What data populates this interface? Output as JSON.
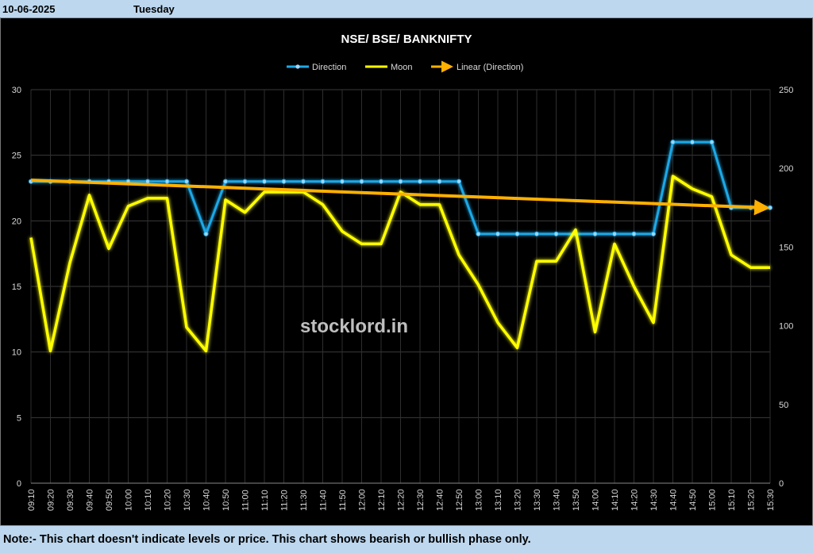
{
  "header": {
    "date": "10-06-2025",
    "day": "Tuesday"
  },
  "footer": {
    "note": "Note:- This chart doesn't indicate levels or price. This chart shows bearish or bullish phase only."
  },
  "watermark": "stocklord.in",
  "chart_data": {
    "type": "line",
    "title": "NSE/ BSE/ BANKNIFTY",
    "legend_placement": "top-center",
    "grid": true,
    "categories": [
      "09:10",
      "09:20",
      "09:30",
      "09:40",
      "09:50",
      "10:00",
      "10:10",
      "10:20",
      "10:30",
      "10:40",
      "10:50",
      "11:00",
      "11:10",
      "11:20",
      "11:30",
      "11:40",
      "11:50",
      "12:00",
      "12:10",
      "12:20",
      "12:30",
      "12:40",
      "12:50",
      "13:00",
      "13:10",
      "13:20",
      "13:30",
      "13:40",
      "13:50",
      "14:00",
      "14:10",
      "14:20",
      "14:30",
      "14:40",
      "14:50",
      "15:00",
      "15:10",
      "15:20",
      "15:30"
    ],
    "y_left": {
      "min": 0,
      "max": 30,
      "ticks": [
        0,
        5,
        10,
        15,
        20,
        25,
        30
      ]
    },
    "y_right": {
      "min": 0,
      "max": 250,
      "ticks": [
        0,
        50,
        100,
        150,
        200,
        250
      ]
    },
    "series": [
      {
        "name": "Direction",
        "axis": "left",
        "color": "#1fa8e6",
        "values": [
          23,
          23,
          23,
          23,
          23,
          23,
          23,
          23,
          23,
          19,
          23,
          23,
          23,
          23,
          23,
          23,
          23,
          23,
          23,
          23,
          23,
          23,
          23,
          19,
          19,
          19,
          19,
          19,
          19,
          19,
          19,
          19,
          19,
          26,
          26,
          26,
          21,
          21,
          21
        ]
      },
      {
        "name": "Moon",
        "axis": "right",
        "color": "#ffff00",
        "values": [
          156,
          84,
          140,
          183,
          149,
          176,
          181,
          181,
          99,
          84,
          180,
          172,
          185,
          185,
          185,
          177,
          160,
          152,
          152,
          185,
          177,
          177,
          145,
          126,
          102,
          86,
          141,
          141,
          161,
          96,
          152,
          125,
          102,
          195,
          187,
          182,
          145,
          137,
          137
        ]
      },
      {
        "name": "Linear (Direction)",
        "axis": "left",
        "color": "#ffb000",
        "trendline": true,
        "start": 23.1,
        "end": 21.0
      }
    ]
  }
}
